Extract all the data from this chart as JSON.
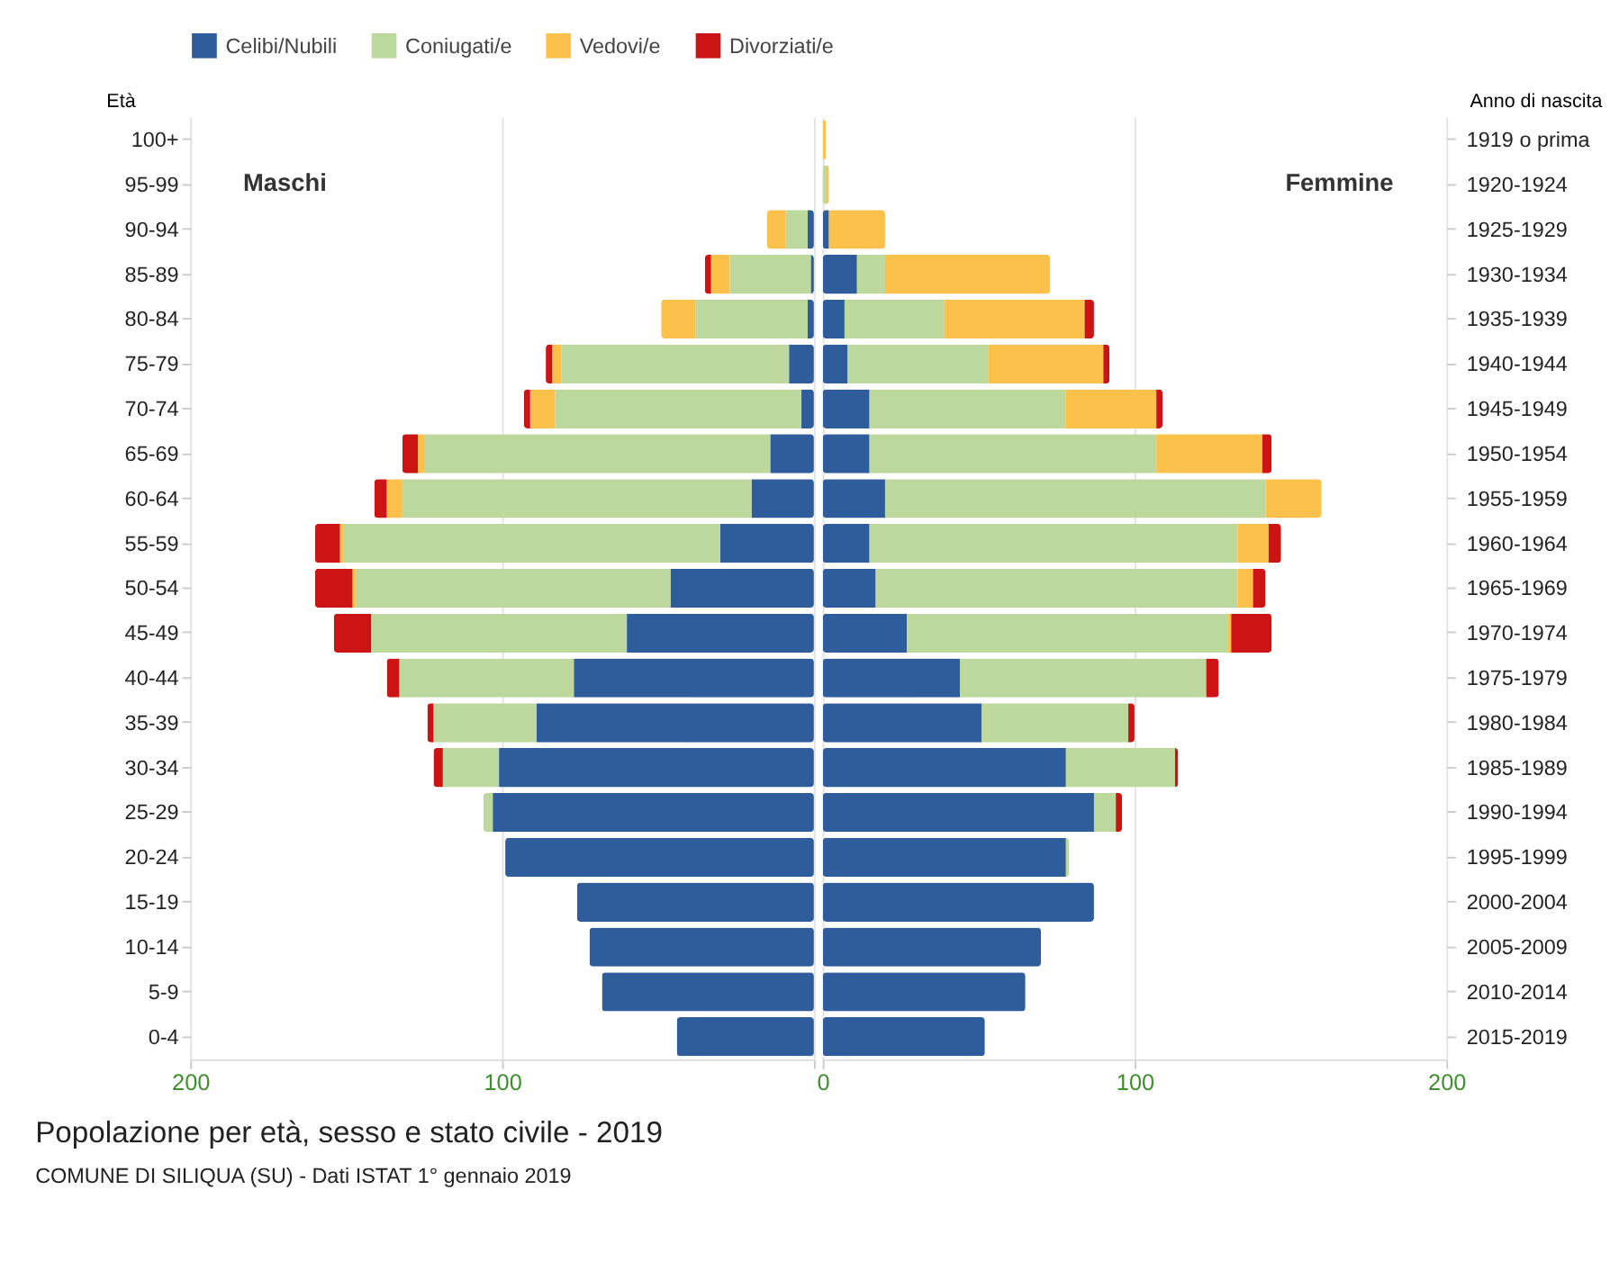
{
  "chart_data": [
    {
      "type": "bar",
      "orientation": "horizontal",
      "stacked": true,
      "ylabel": "Età",
      "title": "Popolazione per età, sesso e stato civile - 2019",
      "annotations": [
        "Maschi",
        "COMUNE DI SILIQUA (SU) - Dati ISTAT 1° gennaio 2019"
      ],
      "categories": [
        "100+",
        "95-99",
        "90-94",
        "85-89",
        "80-84",
        "75-79",
        "70-74",
        "65-69",
        "60-64",
        "55-59",
        "50-54",
        "45-49",
        "40-44",
        "35-39",
        "30-34",
        "25-29",
        "20-24",
        "15-19",
        "10-14",
        "5-9",
        "0-4"
      ],
      "series": [
        {
          "name": "Celibi/Nubili",
          "color": "#2f5d9b",
          "values": [
            0,
            0,
            2,
            1,
            2,
            8,
            4,
            14,
            20,
            30,
            46,
            60,
            77,
            89,
            101,
            103,
            99,
            76,
            72,
            68,
            44
          ]
        },
        {
          "name": "Coniugati/e",
          "color": "#bcd89c",
          "values": [
            0,
            0,
            7,
            26,
            36,
            73,
            79,
            111,
            112,
            121,
            101,
            82,
            56,
            33,
            18,
            3,
            0,
            0,
            0,
            0,
            0
          ]
        },
        {
          "name": "Vedovi/e",
          "color": "#fcc14b",
          "values": [
            0,
            0,
            6,
            6,
            11,
            3,
            8,
            2,
            5,
            1,
            1,
            0,
            0,
            0,
            0,
            0,
            0,
            0,
            0,
            0,
            0
          ]
        },
        {
          "name": "Divorziati/e",
          "color": "#cc1414",
          "values": [
            0,
            0,
            0,
            2,
            0,
            2,
            2,
            5,
            4,
            8,
            12,
            12,
            4,
            2,
            3,
            0,
            0,
            0,
            0,
            0,
            0
          ]
        }
      ],
      "xlim": [
        200,
        0
      ],
      "xticks": [
        200,
        100,
        {
          "value": 0,
          "label": null
        }
      ],
      "grid": "x",
      "legend": "top"
    },
    {
      "type": "bar",
      "orientation": "horizontal",
      "stacked": true,
      "ylabel": "Anno di nascita",
      "annotations": [
        "Femmine"
      ],
      "categories": [
        "1919 o prima",
        "1920-1924",
        "1925-1929",
        "1930-1934",
        "1935-1939",
        "1940-1944",
        "1945-1949",
        "1950-1954",
        "1955-1959",
        "1960-1964",
        "1965-1969",
        "1970-1974",
        "1975-1979",
        "1980-1984",
        "1985-1989",
        "1990-1994",
        "1995-1999",
        "2000-2004",
        "2005-2009",
        "2010-2014",
        "2015-2019"
      ],
      "series": [
        {
          "name": "Celibi/Nubili",
          "color": "#2f5d9b",
          "values": [
            0,
            0,
            2,
            11,
            7,
            8,
            15,
            15,
            20,
            15,
            17,
            27,
            44,
            51,
            78,
            87,
            78,
            87,
            70,
            65,
            52
          ]
        },
        {
          "name": "Coniugati/e",
          "color": "#bcd89c",
          "values": [
            0,
            1,
            0,
            9,
            32,
            45,
            63,
            92,
            122,
            118,
            116,
            103,
            79,
            47,
            35,
            7,
            1,
            0,
            0,
            0,
            0
          ]
        },
        {
          "name": "Vedovi/e",
          "color": "#fcc14b",
          "values": [
            1,
            1,
            18,
            53,
            45,
            37,
            29,
            34,
            18,
            10,
            5,
            1,
            0,
            0,
            0,
            0,
            0,
            0,
            0,
            0,
            0
          ]
        },
        {
          "name": "Divorziati/e",
          "color": "#cc1414",
          "values": [
            0,
            0,
            0,
            0,
            3,
            2,
            2,
            3,
            0,
            4,
            4,
            13,
            4,
            2,
            1,
            2,
            0,
            0,
            0,
            0,
            0
          ]
        }
      ],
      "xlim": [
        0,
        200
      ],
      "xticks": [
        0,
        100,
        200
      ],
      "grid": "x",
      "legend": "top"
    }
  ]
}
